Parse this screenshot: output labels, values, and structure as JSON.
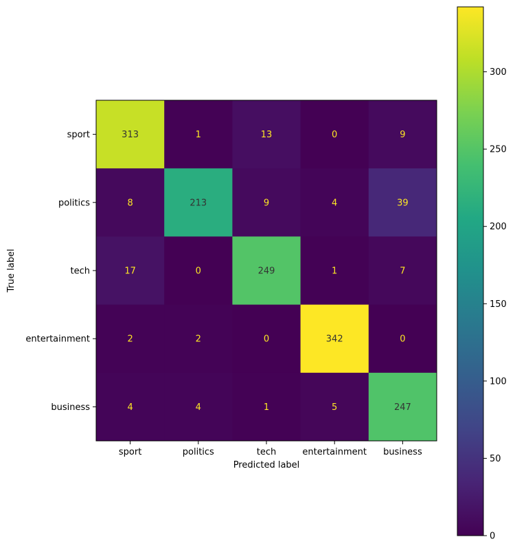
{
  "chart_data": {
    "type": "heatmap",
    "title": "",
    "xlabel": "Predicted label",
    "ylabel": "True label",
    "x_categories": [
      "sport",
      "politics",
      "tech",
      "entertainment",
      "business"
    ],
    "y_categories": [
      "sport",
      "politics",
      "tech",
      "entertainment",
      "business"
    ],
    "matrix": [
      [
        313,
        1,
        13,
        0,
        9
      ],
      [
        8,
        213,
        9,
        4,
        39
      ],
      [
        17,
        0,
        249,
        1,
        7
      ],
      [
        2,
        2,
        0,
        342,
        0
      ],
      [
        4,
        4,
        1,
        5,
        247
      ]
    ],
    "colormap": "viridis",
    "colorbar": {
      "range": [
        0,
        342
      ],
      "ticks": [
        0,
        50,
        100,
        150,
        200,
        250,
        300
      ]
    },
    "cell_text_colors": {
      "on_dark": "#fde725",
      "on_light": "#333333"
    },
    "grid": false
  }
}
